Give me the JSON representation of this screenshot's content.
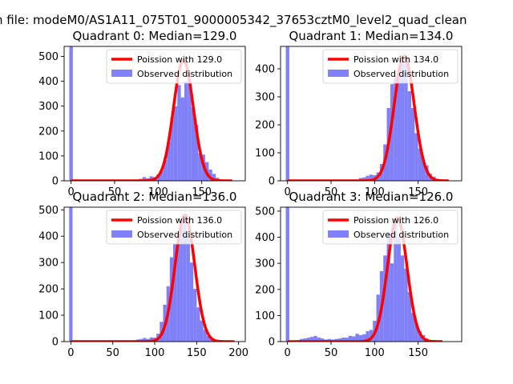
{
  "figure": {
    "suptitle": "n file: modeM0/AS1A11_075T01_9000005342_37653cztM0_level2_quad_clean"
  },
  "colors": {
    "hist": "#8080f8",
    "curve": "#ff0000",
    "frame": "#000000"
  },
  "chart_data": [
    {
      "type": "bar",
      "title": "Quadrant 0: Median=129.0",
      "xlim": [
        -8,
        200
      ],
      "ylim": [
        0,
        540
      ],
      "xticks": [
        0,
        50,
        100,
        150
      ],
      "yticks": [
        0,
        100,
        200,
        300,
        400,
        500
      ],
      "median": 129.0,
      "legend": {
        "position": "top-right",
        "entries": [
          "Poission with 129.0",
          "Observed distribution"
        ]
      },
      "bin_width": 4,
      "histogram": [
        {
          "x": 0,
          "y": 540
        },
        {
          "x": 80,
          "y": 8
        },
        {
          "x": 84,
          "y": 15
        },
        {
          "x": 88,
          "y": 10
        },
        {
          "x": 92,
          "y": 18
        },
        {
          "x": 96,
          "y": 15
        },
        {
          "x": 100,
          "y": 25
        },
        {
          "x": 104,
          "y": 40
        },
        {
          "x": 108,
          "y": 85
        },
        {
          "x": 112,
          "y": 155
        },
        {
          "x": 116,
          "y": 255
        },
        {
          "x": 120,
          "y": 300
        },
        {
          "x": 124,
          "y": 385
        },
        {
          "x": 128,
          "y": 335
        },
        {
          "x": 132,
          "y": 400
        },
        {
          "x": 136,
          "y": 410
        },
        {
          "x": 140,
          "y": 295
        },
        {
          "x": 144,
          "y": 225
        },
        {
          "x": 148,
          "y": 110
        },
        {
          "x": 152,
          "y": 105
        },
        {
          "x": 156,
          "y": 75
        },
        {
          "x": 160,
          "y": 45
        },
        {
          "x": 164,
          "y": 28
        },
        {
          "x": 168,
          "y": 12
        },
        {
          "x": 172,
          "y": 6
        }
      ],
      "curve": {
        "x": [
          0,
          185
        ],
        "peak": 485,
        "center": 129,
        "sigma": 11.4
      }
    },
    {
      "type": "bar",
      "title": "Quadrant 1: Median=134.0",
      "xlim": [
        -8,
        200
      ],
      "ylim": [
        0,
        480
      ],
      "xticks": [
        0,
        50,
        100,
        150
      ],
      "yticks": [
        0,
        100,
        200,
        300,
        400
      ],
      "median": 134.0,
      "legend": {
        "position": "top-right",
        "entries": [
          "Poission with 134.0",
          "Observed distribution"
        ]
      },
      "bin_width": 4,
      "histogram": [
        {
          "x": 0,
          "y": 480
        },
        {
          "x": 84,
          "y": 10
        },
        {
          "x": 88,
          "y": 12
        },
        {
          "x": 92,
          "y": 18
        },
        {
          "x": 96,
          "y": 22
        },
        {
          "x": 100,
          "y": 20
        },
        {
          "x": 104,
          "y": 30
        },
        {
          "x": 108,
          "y": 60
        },
        {
          "x": 112,
          "y": 130
        },
        {
          "x": 116,
          "y": 260
        },
        {
          "x": 120,
          "y": 345
        },
        {
          "x": 124,
          "y": 375
        },
        {
          "x": 128,
          "y": 400
        },
        {
          "x": 132,
          "y": 430
        },
        {
          "x": 136,
          "y": 420
        },
        {
          "x": 140,
          "y": 320
        },
        {
          "x": 144,
          "y": 260
        },
        {
          "x": 148,
          "y": 170
        },
        {
          "x": 152,
          "y": 115
        },
        {
          "x": 156,
          "y": 75
        },
        {
          "x": 160,
          "y": 55
        },
        {
          "x": 164,
          "y": 25
        },
        {
          "x": 168,
          "y": 15
        },
        {
          "x": 172,
          "y": 6
        }
      ],
      "curve": {
        "x": [
          0,
          185
        ],
        "peak": 445,
        "center": 134,
        "sigma": 11.6
      }
    },
    {
      "type": "bar",
      "title": "Quadrant 2: Median=136.0",
      "xlim": [
        -8,
        208
      ],
      "ylim": [
        0,
        510
      ],
      "xticks": [
        0,
        50,
        100,
        150,
        200
      ],
      "yticks": [
        0,
        100,
        200,
        300,
        400,
        500
      ],
      "median": 136.0,
      "legend": {
        "position": "top-right",
        "entries": [
          "Poission with 136.0",
          "Observed distribution"
        ]
      },
      "bin_width": 4,
      "histogram": [
        {
          "x": 0,
          "y": 510
        },
        {
          "x": 80,
          "y": 8
        },
        {
          "x": 84,
          "y": 10
        },
        {
          "x": 88,
          "y": 14
        },
        {
          "x": 92,
          "y": 10
        },
        {
          "x": 96,
          "y": 16
        },
        {
          "x": 100,
          "y": 15
        },
        {
          "x": 104,
          "y": 30
        },
        {
          "x": 108,
          "y": 75
        },
        {
          "x": 112,
          "y": 140
        },
        {
          "x": 116,
          "y": 210
        },
        {
          "x": 120,
          "y": 320
        },
        {
          "x": 124,
          "y": 370
        },
        {
          "x": 128,
          "y": 410
        },
        {
          "x": 132,
          "y": 440
        },
        {
          "x": 136,
          "y": 470
        },
        {
          "x": 140,
          "y": 400
        },
        {
          "x": 144,
          "y": 300
        },
        {
          "x": 148,
          "y": 200
        },
        {
          "x": 152,
          "y": 130
        },
        {
          "x": 156,
          "y": 80
        },
        {
          "x": 160,
          "y": 45
        },
        {
          "x": 164,
          "y": 22
        },
        {
          "x": 168,
          "y": 10
        },
        {
          "x": 172,
          "y": 5
        }
      ],
      "curve": {
        "x": [
          0,
          195
        ],
        "peak": 480,
        "center": 136,
        "sigma": 11.7
      }
    },
    {
      "type": "bar",
      "title": "Quadrant 3: Median=126.0",
      "xlim": [
        -8,
        200
      ],
      "ylim": [
        0,
        515
      ],
      "xticks": [
        0,
        50,
        100,
        150
      ],
      "yticks": [
        0,
        100,
        200,
        300,
        400,
        500
      ],
      "median": 126.0,
      "legend": {
        "position": "top-right",
        "entries": [
          "Poission with 126.0",
          "Observed distribution"
        ]
      },
      "bin_width": 4,
      "histogram": [
        {
          "x": 0,
          "y": 515
        },
        {
          "x": 12,
          "y": 6
        },
        {
          "x": 16,
          "y": 10
        },
        {
          "x": 20,
          "y": 12
        },
        {
          "x": 24,
          "y": 15
        },
        {
          "x": 28,
          "y": 18
        },
        {
          "x": 32,
          "y": 22
        },
        {
          "x": 36,
          "y": 16
        },
        {
          "x": 40,
          "y": 12
        },
        {
          "x": 44,
          "y": 8
        },
        {
          "x": 48,
          "y": 10
        },
        {
          "x": 52,
          "y": 8
        },
        {
          "x": 56,
          "y": 10
        },
        {
          "x": 60,
          "y": 12
        },
        {
          "x": 64,
          "y": 15
        },
        {
          "x": 68,
          "y": 15
        },
        {
          "x": 72,
          "y": 22
        },
        {
          "x": 76,
          "y": 20
        },
        {
          "x": 80,
          "y": 30
        },
        {
          "x": 84,
          "y": 25
        },
        {
          "x": 88,
          "y": 28
        },
        {
          "x": 92,
          "y": 40
        },
        {
          "x": 96,
          "y": 45
        },
        {
          "x": 100,
          "y": 80
        },
        {
          "x": 104,
          "y": 180
        },
        {
          "x": 108,
          "y": 270
        },
        {
          "x": 112,
          "y": 330
        },
        {
          "x": 116,
          "y": 420
        },
        {
          "x": 120,
          "y": 300
        },
        {
          "x": 124,
          "y": 460
        },
        {
          "x": 128,
          "y": 400
        },
        {
          "x": 132,
          "y": 330
        },
        {
          "x": 136,
          "y": 280
        },
        {
          "x": 140,
          "y": 190
        },
        {
          "x": 144,
          "y": 110
        },
        {
          "x": 148,
          "y": 70
        },
        {
          "x": 152,
          "y": 40
        },
        {
          "x": 156,
          "y": 25
        },
        {
          "x": 160,
          "y": 12
        },
        {
          "x": 164,
          "y": 6
        }
      ],
      "curve": {
        "x": [
          0,
          178
        ],
        "peak": 475,
        "center": 126,
        "sigma": 11.2
      }
    }
  ]
}
